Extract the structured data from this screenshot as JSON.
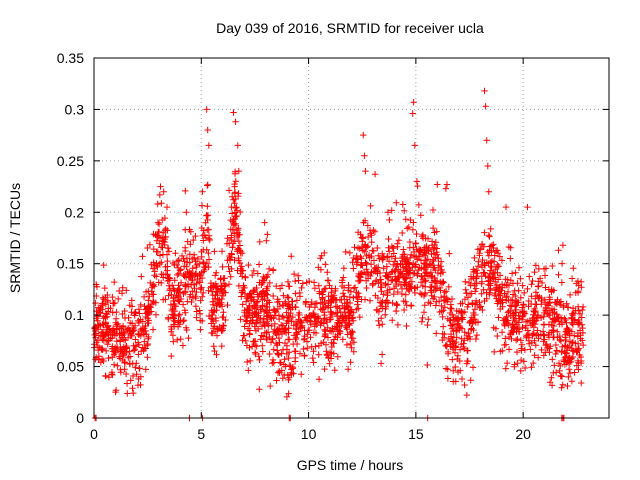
{
  "chart_data": {
    "type": "scatter",
    "title": "Day 039 of 2016, SRMTID for receiver ucla",
    "xlabel": "GPS time / hours",
    "ylabel": "SRMTID / TECUs",
    "xlim": [
      0,
      24
    ],
    "ylim": [
      0,
      0.35
    ],
    "xticks": [
      0,
      5,
      10,
      15,
      20
    ],
    "xtick_labels": [
      "0",
      "5",
      "10",
      "15",
      "20"
    ],
    "yticks": [
      0,
      0.05,
      0.1,
      0.15,
      0.2,
      0.25,
      0.3,
      0.35
    ],
    "ytick_labels": [
      "0",
      "0.05",
      "0.1",
      "0.15",
      "0.2",
      "0.25",
      "0.3",
      "0.35"
    ],
    "grid": true,
    "marker": "plus",
    "color": "#ff0000",
    "series": [
      {
        "name": "SRMTID",
        "profile": [
          [
            0.0,
            0.085
          ],
          [
            0.5,
            0.09
          ],
          [
            1.0,
            0.075
          ],
          [
            1.5,
            0.07
          ],
          [
            2.0,
            0.07
          ],
          [
            2.5,
            0.09
          ],
          [
            3.0,
            0.16
          ],
          [
            3.3,
            0.17
          ],
          [
            3.6,
            0.11
          ],
          [
            4.0,
            0.12
          ],
          [
            4.5,
            0.14
          ],
          [
            5.0,
            0.12
          ],
          [
            5.3,
            0.19
          ],
          [
            5.5,
            0.1
          ],
          [
            6.0,
            0.11
          ],
          [
            6.6,
            0.2
          ],
          [
            7.0,
            0.1
          ],
          [
            7.5,
            0.09
          ],
          [
            8.0,
            0.11
          ],
          [
            8.5,
            0.08
          ],
          [
            9.0,
            0.08
          ],
          [
            9.5,
            0.09
          ],
          [
            10.0,
            0.09
          ],
          [
            10.5,
            0.1
          ],
          [
            11.0,
            0.1
          ],
          [
            11.5,
            0.1
          ],
          [
            12.0,
            0.1
          ],
          [
            12.5,
            0.15
          ],
          [
            13.0,
            0.15
          ],
          [
            13.5,
            0.12
          ],
          [
            14.0,
            0.14
          ],
          [
            14.5,
            0.14
          ],
          [
            15.0,
            0.15
          ],
          [
            15.5,
            0.14
          ],
          [
            16.0,
            0.14
          ],
          [
            16.5,
            0.09
          ],
          [
            17.0,
            0.08
          ],
          [
            17.5,
            0.09
          ],
          [
            18.0,
            0.14
          ],
          [
            18.5,
            0.14
          ],
          [
            19.0,
            0.11
          ],
          [
            19.5,
            0.09
          ],
          [
            20.0,
            0.09
          ],
          [
            20.5,
            0.1
          ],
          [
            21.0,
            0.09
          ],
          [
            21.5,
            0.09
          ],
          [
            22.0,
            0.07
          ],
          [
            22.5,
            0.08
          ],
          [
            22.8,
            0.08
          ]
        ],
        "spikes": [
          [
            3.1,
            0.225
          ],
          [
            3.25,
            0.22
          ],
          [
            4.3,
            0.2
          ],
          [
            5.05,
            0.22
          ],
          [
            5.25,
            0.3
          ],
          [
            5.3,
            0.28
          ],
          [
            5.35,
            0.265
          ],
          [
            6.5,
            0.297
          ],
          [
            6.6,
            0.288
          ],
          [
            6.7,
            0.265
          ],
          [
            6.75,
            0.24
          ],
          [
            7.95,
            0.19
          ],
          [
            12.55,
            0.275
          ],
          [
            12.6,
            0.255
          ],
          [
            12.65,
            0.24
          ],
          [
            13.1,
            0.237
          ],
          [
            14.9,
            0.307
          ],
          [
            14.85,
            0.296
          ],
          [
            14.95,
            0.265
          ],
          [
            15.05,
            0.23
          ],
          [
            16.4,
            0.223
          ],
          [
            16.45,
            0.227
          ],
          [
            18.2,
            0.318
          ],
          [
            18.25,
            0.303
          ],
          [
            18.3,
            0.27
          ],
          [
            18.35,
            0.245
          ],
          [
            18.4,
            0.22
          ],
          [
            19.2,
            0.205
          ],
          [
            20.2,
            0.205
          ],
          [
            21.85,
            0.168
          ],
          [
            16.0,
            0.227
          ],
          [
            13.7,
            0.2
          ],
          [
            3.4,
            0.205
          ],
          [
            6.55,
            0.225
          ]
        ],
        "zero_points": [
          0.05,
          0.1,
          4.45,
          5.05,
          9.1,
          9.15,
          15.55,
          21.8,
          21.85,
          21.9
        ]
      }
    ],
    "n_points": 2600
  }
}
